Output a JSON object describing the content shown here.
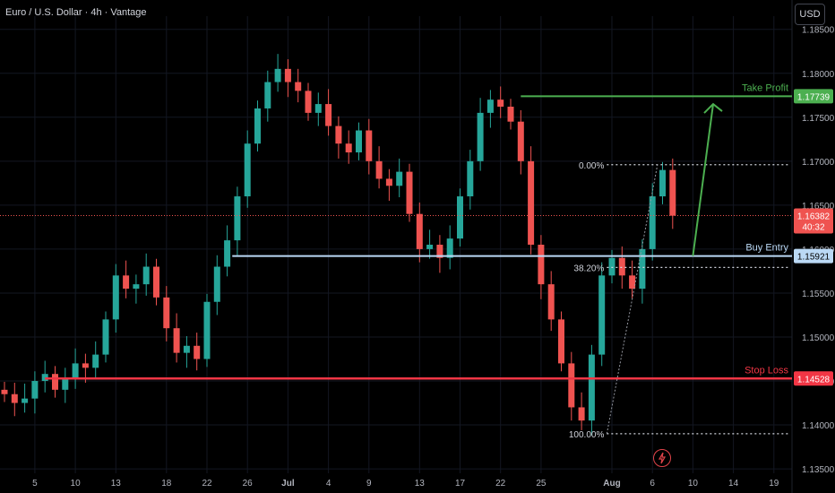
{
  "header": {
    "title": "Euro / U.S. Dollar · 4h · Vantage",
    "currency_button": "USD"
  },
  "icons": {
    "alert": "lightning-bolt-icon"
  },
  "colors": {
    "up": "#26a69a",
    "down": "#ef5350",
    "take_profit": "#4caf50",
    "entry": "#bbd9f5",
    "stop": "#f23645",
    "grid": "#131722",
    "text": "#b2b5be"
  },
  "chart_data": {
    "type": "candlestick",
    "ylim": [
      1.1345,
      1.1865
    ],
    "yticks": [
      "1.18500",
      "1.18000",
      "1.17500",
      "1.17000",
      "1.16500",
      "1.16000",
      "1.15500",
      "1.15000",
      "1.14500",
      "1.14000",
      "1.13500"
    ],
    "xticks": [
      {
        "label": "5",
        "i": 3
      },
      {
        "label": "10",
        "i": 7
      },
      {
        "label": "13",
        "i": 11
      },
      {
        "label": "18",
        "i": 16
      },
      {
        "label": "22",
        "i": 20
      },
      {
        "label": "26",
        "i": 24
      },
      {
        "label": "Jul",
        "i": 28,
        "bold": true
      },
      {
        "label": "4",
        "i": 32
      },
      {
        "label": "9",
        "i": 36
      },
      {
        "label": "13",
        "i": 41
      },
      {
        "label": "17",
        "i": 45
      },
      {
        "label": "22",
        "i": 49
      },
      {
        "label": "25",
        "i": 53
      },
      {
        "label": "Aug",
        "i": 60,
        "bold": true
      },
      {
        "label": "6",
        "i": 64
      },
      {
        "label": "10",
        "i": 68
      },
      {
        "label": "14",
        "i": 72
      },
      {
        "label": "19",
        "i": 76
      }
    ],
    "candle_close": [
      1.1435,
      1.1425,
      1.143,
      1.145,
      1.1458,
      1.144,
      1.1452,
      1.147,
      1.1465,
      1.148,
      1.152,
      1.157,
      1.1555,
      1.156,
      1.158,
      1.1545,
      1.151,
      1.1482,
      1.149,
      1.1475,
      1.154,
      1.158,
      1.161,
      1.166,
      1.172,
      1.176,
      1.179,
      1.1805,
      1.179,
      1.178,
      1.1755,
      1.1765,
      1.174,
      1.172,
      1.171,
      1.1735,
      1.17,
      1.168,
      1.1672,
      1.1688,
      1.164,
      1.16,
      1.1605,
      1.159,
      1.1612,
      1.166,
      1.17,
      1.1755,
      1.177,
      1.1762,
      1.1745,
      1.17,
      1.1605,
      1.156,
      1.152,
      1.147,
      1.142,
      1.1405,
      1.148,
      1.157,
      1.159,
      1.157,
      1.1555,
      1.16,
      1.166,
      1.169,
      1.1638
    ],
    "annotations": {
      "fib_100": "100.00%",
      "fib_382": "38.20%",
      "fib_0": "0.00%"
    },
    "levels": {
      "take_profit": {
        "label": "Take Profit",
        "price": 1.17739,
        "price_text": "1.17739"
      },
      "buy_entry": {
        "label": "Buy Entry",
        "price": 1.15921,
        "price_text": "1.15921"
      },
      "stop_loss": {
        "label": "Stop Loss",
        "price": 1.14528,
        "price_text": "1.14528"
      },
      "current": {
        "price": 1.16382,
        "price_text": "1.16382",
        "countdown": "40:32"
      }
    }
  }
}
